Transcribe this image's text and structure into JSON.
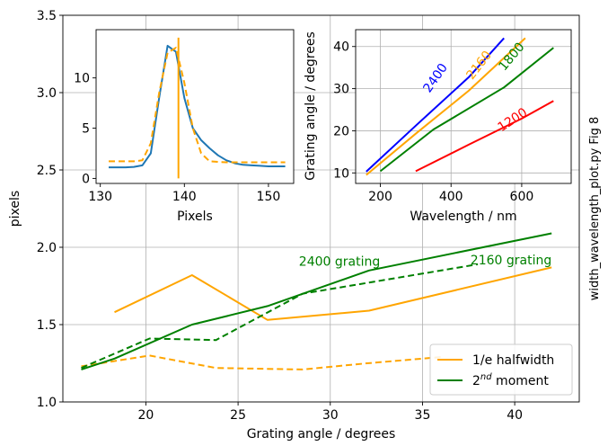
{
  "chart_data": [
    {
      "id": "main",
      "type": "line",
      "xlabel": "Grating angle / degrees",
      "ylabel": "pixels",
      "xlim": [
        15.5,
        43.5
      ],
      "ylim": [
        1.0,
        3.5
      ],
      "xticks": [
        20,
        25,
        30,
        35,
        40
      ],
      "yticks": [
        1.0,
        1.5,
        2.0,
        2.5,
        3.0,
        3.5
      ],
      "xticklabels": [
        "20",
        "25",
        "30",
        "35",
        "40"
      ],
      "yticklabels": [
        "1.0",
        "1.5",
        "2.0",
        "2.5",
        "3.0",
        "3.5"
      ],
      "grid": true,
      "side_label": "width_wavelength_plot.py Fig 8",
      "legend": {
        "placement": "lower-right",
        "entries": [
          {
            "label": "1/e halfwidth",
            "color": "#ffa500"
          },
          {
            "label": "2",
            "sup": "nd",
            "suffix": " moment",
            "color": "#008000"
          }
        ]
      },
      "annotations": [
        {
          "text": "2400 grating",
          "x": 30.5,
          "y": 1.88,
          "color": "#008000"
        },
        {
          "text": "2160 grating",
          "x": 39.8,
          "y": 1.89,
          "color": "#008000"
        }
      ],
      "series": [
        {
          "color": "#ffa500",
          "dash": "solid",
          "x": [
            18.3,
            22.5,
            26.6,
            32.1,
            42.0
          ],
          "y": [
            1.58,
            1.82,
            1.53,
            1.59,
            1.87
          ]
        },
        {
          "color": "#ffa500",
          "dash": "dashed",
          "x": [
            16.5,
            20.2,
            23.8,
            28.5,
            32.0,
            36.0
          ],
          "y": [
            1.23,
            1.3,
            1.22,
            1.21,
            1.25,
            1.29
          ]
        },
        {
          "color": "#008000",
          "dash": "solid",
          "x": [
            16.5,
            18.3,
            22.5,
            26.6,
            32.1,
            42.0
          ],
          "y": [
            1.21,
            1.28,
            1.5,
            1.62,
            1.85,
            2.09
          ]
        },
        {
          "color": "#008000",
          "dash": "dashed",
          "x": [
            16.5,
            20.2,
            23.8,
            28.5,
            32.0,
            38.0
          ],
          "y": [
            1.22,
            1.41,
            1.4,
            1.7,
            1.77,
            1.89
          ]
        }
      ]
    },
    {
      "id": "inset-left",
      "type": "line",
      "xlabel": "Pixels",
      "ylabel": "",
      "xlim": [
        129.5,
        153
      ],
      "ylim": [
        -0.5,
        14.8
      ],
      "xticks": [
        130,
        140,
        150
      ],
      "yticks": [
        0,
        5,
        10
      ],
      "xticklabels": [
        "130",
        "140",
        "150"
      ],
      "yticklabels": [
        "0",
        "5",
        "10"
      ],
      "grid": false,
      "series": [
        {
          "color": "#1f77b4",
          "dash": "solid",
          "x": [
            131,
            132,
            133,
            134,
            135,
            136,
            137,
            138,
            139,
            140,
            141,
            142,
            143,
            144,
            145,
            146,
            147,
            148,
            149,
            150,
            151,
            152
          ],
          "y": [
            1.1,
            1.1,
            1.1,
            1.15,
            1.3,
            2.5,
            8.0,
            13.2,
            12.6,
            8.0,
            5.0,
            3.8,
            3.0,
            2.3,
            1.8,
            1.5,
            1.35,
            1.3,
            1.25,
            1.2,
            1.2,
            1.2
          ]
        },
        {
          "color": "#ffa500",
          "dash": "dashed",
          "x": [
            131,
            132,
            133,
            134,
            135,
            136,
            137,
            138,
            139,
            140,
            141,
            142,
            143,
            144,
            145,
            146,
            147,
            148,
            149,
            150,
            151,
            152
          ],
          "y": [
            1.7,
            1.7,
            1.7,
            1.7,
            1.8,
            3.5,
            8.5,
            12.5,
            13.0,
            9.5,
            5.0,
            2.5,
            1.7,
            1.65,
            1.6,
            1.6,
            1.6,
            1.6,
            1.6,
            1.6,
            1.6,
            1.6
          ]
        },
        {
          "color": "#ffa500",
          "dash": "solid",
          "x": [
            139.3,
            139.3
          ],
          "y": [
            0.0,
            14.0
          ]
        }
      ]
    },
    {
      "id": "inset-right",
      "type": "line",
      "xlabel": "Wavelength / nm",
      "ylabel": "Grating angle / degrees",
      "xlim": [
        130,
        740
      ],
      "ylim": [
        7.5,
        44
      ],
      "xticks": [
        200,
        400,
        600
      ],
      "yticks": [
        10,
        20,
        30,
        40
      ],
      "xticklabels": [
        "200",
        "400",
        "600"
      ],
      "yticklabels": [
        "10",
        "20",
        "30",
        "40"
      ],
      "grid": true,
      "labels": [
        {
          "text": "2400",
          "x": 365,
          "y": 32,
          "color": "#0000ff",
          "rotate": -55
        },
        {
          "text": "2160",
          "x": 488,
          "y": 35,
          "color": "#ffa500",
          "rotate": -52
        },
        {
          "text": "1800",
          "x": 580,
          "y": 37,
          "color": "#008000",
          "rotate": -50
        },
        {
          "text": "1200",
          "x": 580,
          "y": 21.8,
          "color": "#ff0000",
          "rotate": -33
        }
      ],
      "series": [
        {
          "name": "2400",
          "color": "#0000ff",
          "dash": "solid",
          "x": [
            160,
            300,
            450,
            550
          ],
          "y": [
            10.3,
            21.2,
            32.7,
            42.0
          ]
        },
        {
          "name": "2160",
          "color": "#ffa500",
          "dash": "solid",
          "x": [
            160,
            300,
            450,
            610
          ],
          "y": [
            9.5,
            19.3,
            29.5,
            42.0
          ]
        },
        {
          "name": "1800",
          "color": "#008000",
          "dash": "solid",
          "x": [
            200,
            350,
            550,
            690
          ],
          "y": [
            10.4,
            20.3,
            30.3,
            39.7
          ]
        },
        {
          "name": "1200",
          "color": "#ff0000",
          "dash": "solid",
          "x": [
            300,
            450,
            600,
            690
          ],
          "y": [
            10.4,
            16.7,
            22.9,
            27.1
          ]
        }
      ]
    }
  ]
}
